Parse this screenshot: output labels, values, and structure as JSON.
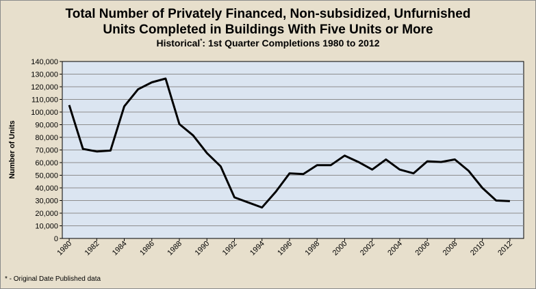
{
  "chart_data": {
    "type": "line",
    "title": "Total Number of Privately Financed, Non-subsidized, Unfurnished Units Completed in Buildings With Five Units or More",
    "title_line1": "Total Number of Privately Financed, Non-subsidized, Unfurnished",
    "title_line2": "Units Completed in Buildings With Five Units or More",
    "subtitle_prefix": "Historical",
    "subtitle_mark": "*",
    "subtitle_rest": ":  1st Quarter Completions 1980 to 2012",
    "ylabel": "Number of Units",
    "xlabel": "",
    "ylim": [
      0,
      140000
    ],
    "ytick_values": [
      0,
      10000,
      20000,
      30000,
      40000,
      50000,
      60000,
      70000,
      80000,
      90000,
      100000,
      110000,
      120000,
      130000,
      140000
    ],
    "ytick_labels": [
      "0",
      "10,000",
      "20,000",
      "30,000",
      "40,000",
      "50,000",
      "60,000",
      "70,000",
      "80,000",
      "90,000",
      "100,000",
      "110,000",
      "120,000",
      "130,000",
      "140,000"
    ],
    "xtick_labels": [
      "1980",
      "1982",
      "1984",
      "1986",
      "1988",
      "1990",
      "1992",
      "1994",
      "1996",
      "1998",
      "2000",
      "2002",
      "2004",
      "2006",
      "2008",
      "2010",
      "2012"
    ],
    "grid": true,
    "footnote": "* - Original Date Published data",
    "series": [
      {
        "x": [
          1980,
          1981,
          1982,
          1983,
          1984,
          1985,
          1986,
          1987,
          1988,
          1989,
          1990,
          1991,
          1992,
          1993,
          1994,
          1995,
          1996,
          1997,
          1998,
          1999,
          2000,
          2001,
          2002,
          2003,
          2004,
          2005,
          2006,
          2007,
          2008,
          2009,
          2010,
          2011,
          2012
        ],
        "values": [
          105500,
          70800,
          68800,
          69500,
          104500,
          118000,
          123500,
          126500,
          90500,
          81500,
          67500,
          57000,
          32500,
          28500,
          24500,
          37000,
          51500,
          51000,
          58000,
          58000,
          65500,
          60500,
          54500,
          62500,
          54500,
          51500,
          61000,
          60500,
          62500,
          53500,
          40000,
          30000,
          29500
        ]
      }
    ],
    "colors": {
      "background": "#e7dfcc",
      "plot_area": "#dbe5f1",
      "gridline": "#8c8c8c",
      "line": "#000000"
    }
  }
}
